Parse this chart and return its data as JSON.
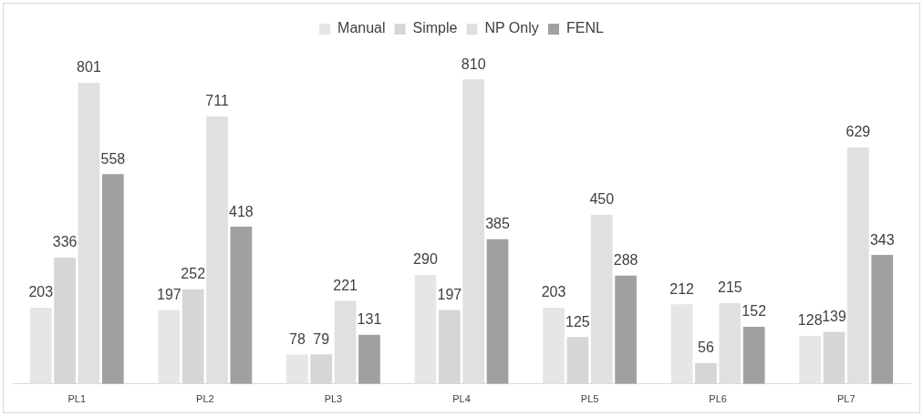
{
  "chart_data": {
    "type": "bar",
    "categories": [
      "PL1",
      "PL2",
      "PL3",
      "PL4",
      "PL5",
      "PL6",
      "PL7"
    ],
    "series": [
      {
        "name": "Manual",
        "color": "#e6e6e6",
        "values": [
          203,
          197,
          78,
          290,
          203,
          212,
          128
        ]
      },
      {
        "name": "Simple",
        "color": "#d6d6d6",
        "values": [
          336,
          252,
          79,
          197,
          125,
          56,
          139
        ]
      },
      {
        "name": "NP Only",
        "color": "#e0e0e0",
        "values": [
          801,
          711,
          221,
          810,
          450,
          215,
          629
        ]
      },
      {
        "name": "FENL",
        "color": "#a0a0a0",
        "values": [
          558,
          418,
          131,
          385,
          288,
          152,
          343
        ]
      }
    ],
    "data_labels": true,
    "legend": "top",
    "grid": false
  }
}
